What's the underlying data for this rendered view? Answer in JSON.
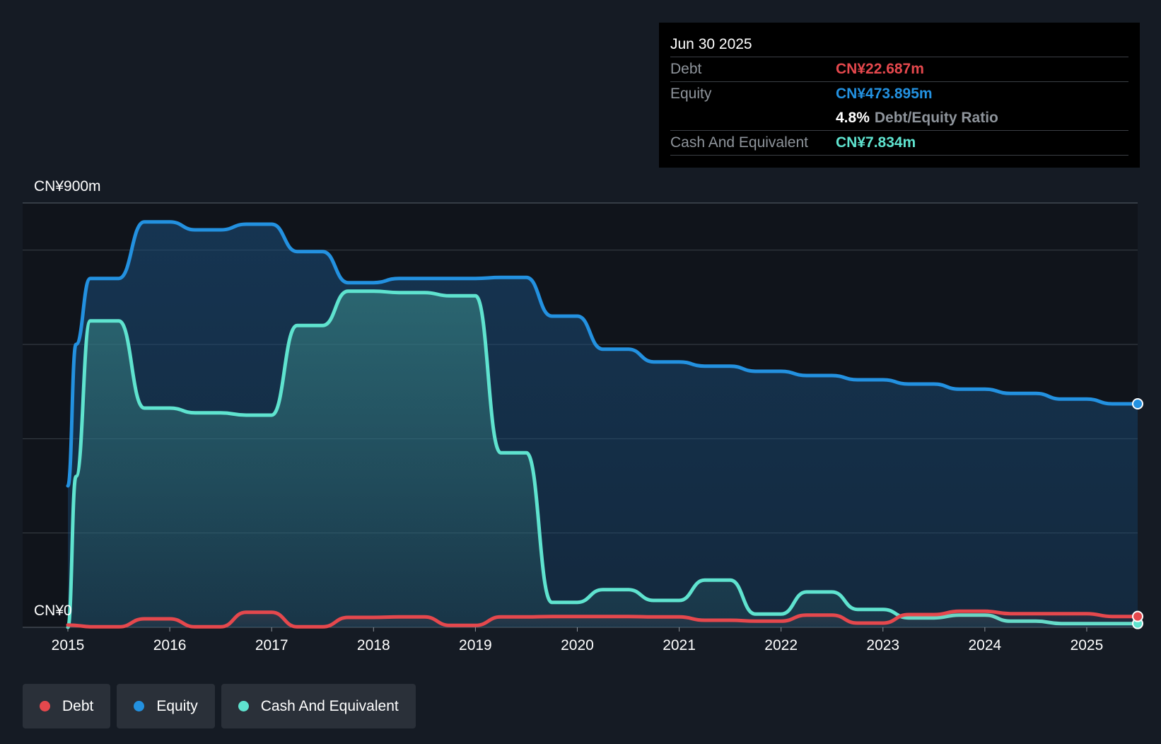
{
  "colors": {
    "debt": "#e5484d",
    "equity": "#2391e0",
    "cash": "#5fe3cf",
    "background": "#151b24",
    "plot_background": "#10141b",
    "grid": "#3a4048"
  },
  "tooltip": {
    "date": "Jun 30 2025",
    "debt_label": "Debt",
    "debt_value": "CN¥22.687m",
    "equity_label": "Equity",
    "equity_value": "CN¥473.895m",
    "ratio_value": "4.8%",
    "ratio_label": "Debt/Equity Ratio",
    "cash_label": "Cash And Equivalent",
    "cash_value": "CN¥7.834m"
  },
  "legend": {
    "debt": "Debt",
    "equity": "Equity",
    "cash": "Cash And Equivalent"
  },
  "chart_data": {
    "type": "area",
    "title": "",
    "xlabel": "",
    "ylabel": "",
    "ylim": [
      0,
      900
    ],
    "xlim": [
      2015.0,
      2025.5
    ],
    "y_top_label": "CN¥900m",
    "y_bottom_label": "CN¥0",
    "x_ticks": [
      2015,
      2016,
      2017,
      2018,
      2019,
      2020,
      2021,
      2022,
      2023,
      2024,
      2025
    ],
    "x_tick_labels": [
      "2015",
      "2016",
      "2017",
      "2018",
      "2019",
      "2020",
      "2021",
      "2022",
      "2023",
      "2024",
      "2025"
    ],
    "grid_values": [
      0,
      200,
      400,
      600,
      800,
      900
    ],
    "series": [
      {
        "name": "Equity",
        "key": "equity",
        "points": [
          [
            2015.0,
            300
          ],
          [
            2015.08,
            600
          ],
          [
            2015.22,
            740
          ],
          [
            2015.5,
            740
          ],
          [
            2015.75,
            860
          ],
          [
            2016.0,
            860
          ],
          [
            2016.25,
            843
          ],
          [
            2016.5,
            843
          ],
          [
            2016.75,
            855
          ],
          [
            2017.0,
            855
          ],
          [
            2017.25,
            797
          ],
          [
            2017.5,
            797
          ],
          [
            2017.75,
            731
          ],
          [
            2018.0,
            731
          ],
          [
            2018.25,
            740
          ],
          [
            2018.5,
            740
          ],
          [
            2019.0,
            740
          ],
          [
            2019.25,
            742
          ],
          [
            2019.5,
            742
          ],
          [
            2019.75,
            660
          ],
          [
            2020.0,
            660
          ],
          [
            2020.25,
            590
          ],
          [
            2020.5,
            590
          ],
          [
            2020.75,
            563
          ],
          [
            2021.0,
            563
          ],
          [
            2021.25,
            554
          ],
          [
            2021.5,
            554
          ],
          [
            2021.75,
            543
          ],
          [
            2022.0,
            543
          ],
          [
            2022.25,
            534
          ],
          [
            2022.5,
            534
          ],
          [
            2022.75,
            525
          ],
          [
            2023.0,
            525
          ],
          [
            2023.25,
            516
          ],
          [
            2023.5,
            516
          ],
          [
            2023.75,
            505
          ],
          [
            2024.0,
            505
          ],
          [
            2024.25,
            496
          ],
          [
            2024.5,
            496
          ],
          [
            2024.75,
            484
          ],
          [
            2025.0,
            484
          ],
          [
            2025.25,
            474
          ],
          [
            2025.5,
            474
          ]
        ]
      },
      {
        "name": "Cash And Equivalent",
        "key": "cash",
        "points": [
          [
            2015.0,
            0
          ],
          [
            2015.08,
            320
          ],
          [
            2015.22,
            650
          ],
          [
            2015.5,
            650
          ],
          [
            2015.75,
            465
          ],
          [
            2016.0,
            465
          ],
          [
            2016.25,
            455
          ],
          [
            2016.5,
            455
          ],
          [
            2016.75,
            450
          ],
          [
            2017.0,
            450
          ],
          [
            2017.25,
            640
          ],
          [
            2017.5,
            640
          ],
          [
            2017.75,
            713
          ],
          [
            2018.0,
            713
          ],
          [
            2018.25,
            710
          ],
          [
            2018.5,
            710
          ],
          [
            2018.75,
            703
          ],
          [
            2019.0,
            703
          ],
          [
            2019.25,
            370
          ],
          [
            2019.5,
            370
          ],
          [
            2019.75,
            53
          ],
          [
            2020.0,
            53
          ],
          [
            2020.25,
            80
          ],
          [
            2020.5,
            80
          ],
          [
            2020.75,
            57
          ],
          [
            2021.0,
            57
          ],
          [
            2021.25,
            100
          ],
          [
            2021.5,
            100
          ],
          [
            2021.75,
            28
          ],
          [
            2022.0,
            28
          ],
          [
            2022.25,
            75
          ],
          [
            2022.5,
            75
          ],
          [
            2022.75,
            38
          ],
          [
            2023.0,
            38
          ],
          [
            2023.25,
            20
          ],
          [
            2023.5,
            20
          ],
          [
            2023.75,
            26
          ],
          [
            2024.0,
            26
          ],
          [
            2024.25,
            13
          ],
          [
            2024.5,
            13
          ],
          [
            2024.75,
            8
          ],
          [
            2025.0,
            8
          ],
          [
            2025.25,
            8
          ],
          [
            2025.5,
            8
          ]
        ]
      },
      {
        "name": "Debt",
        "key": "debt",
        "points": [
          [
            2015.0,
            5
          ],
          [
            2015.25,
            1
          ],
          [
            2015.5,
            1
          ],
          [
            2015.75,
            18
          ],
          [
            2016.0,
            18
          ],
          [
            2016.25,
            1
          ],
          [
            2016.5,
            1
          ],
          [
            2016.75,
            32
          ],
          [
            2017.0,
            32
          ],
          [
            2017.25,
            1
          ],
          [
            2017.5,
            1
          ],
          [
            2017.75,
            21
          ],
          [
            2018.0,
            21
          ],
          [
            2018.25,
            22
          ],
          [
            2018.5,
            22
          ],
          [
            2018.75,
            4
          ],
          [
            2019.0,
            4
          ],
          [
            2019.25,
            22
          ],
          [
            2019.5,
            22
          ],
          [
            2019.75,
            23
          ],
          [
            2020.0,
            23
          ],
          [
            2020.5,
            23
          ],
          [
            2020.75,
            22
          ],
          [
            2021.0,
            22
          ],
          [
            2021.25,
            15
          ],
          [
            2021.5,
            15
          ],
          [
            2021.75,
            13
          ],
          [
            2022.0,
            13
          ],
          [
            2022.25,
            26
          ],
          [
            2022.5,
            26
          ],
          [
            2022.75,
            9
          ],
          [
            2023.0,
            9
          ],
          [
            2023.25,
            27
          ],
          [
            2023.5,
            27
          ],
          [
            2023.75,
            34
          ],
          [
            2024.0,
            34
          ],
          [
            2024.25,
            29
          ],
          [
            2024.5,
            29
          ],
          [
            2025.0,
            29
          ],
          [
            2025.25,
            23
          ],
          [
            2025.5,
            23
          ]
        ]
      }
    ]
  }
}
